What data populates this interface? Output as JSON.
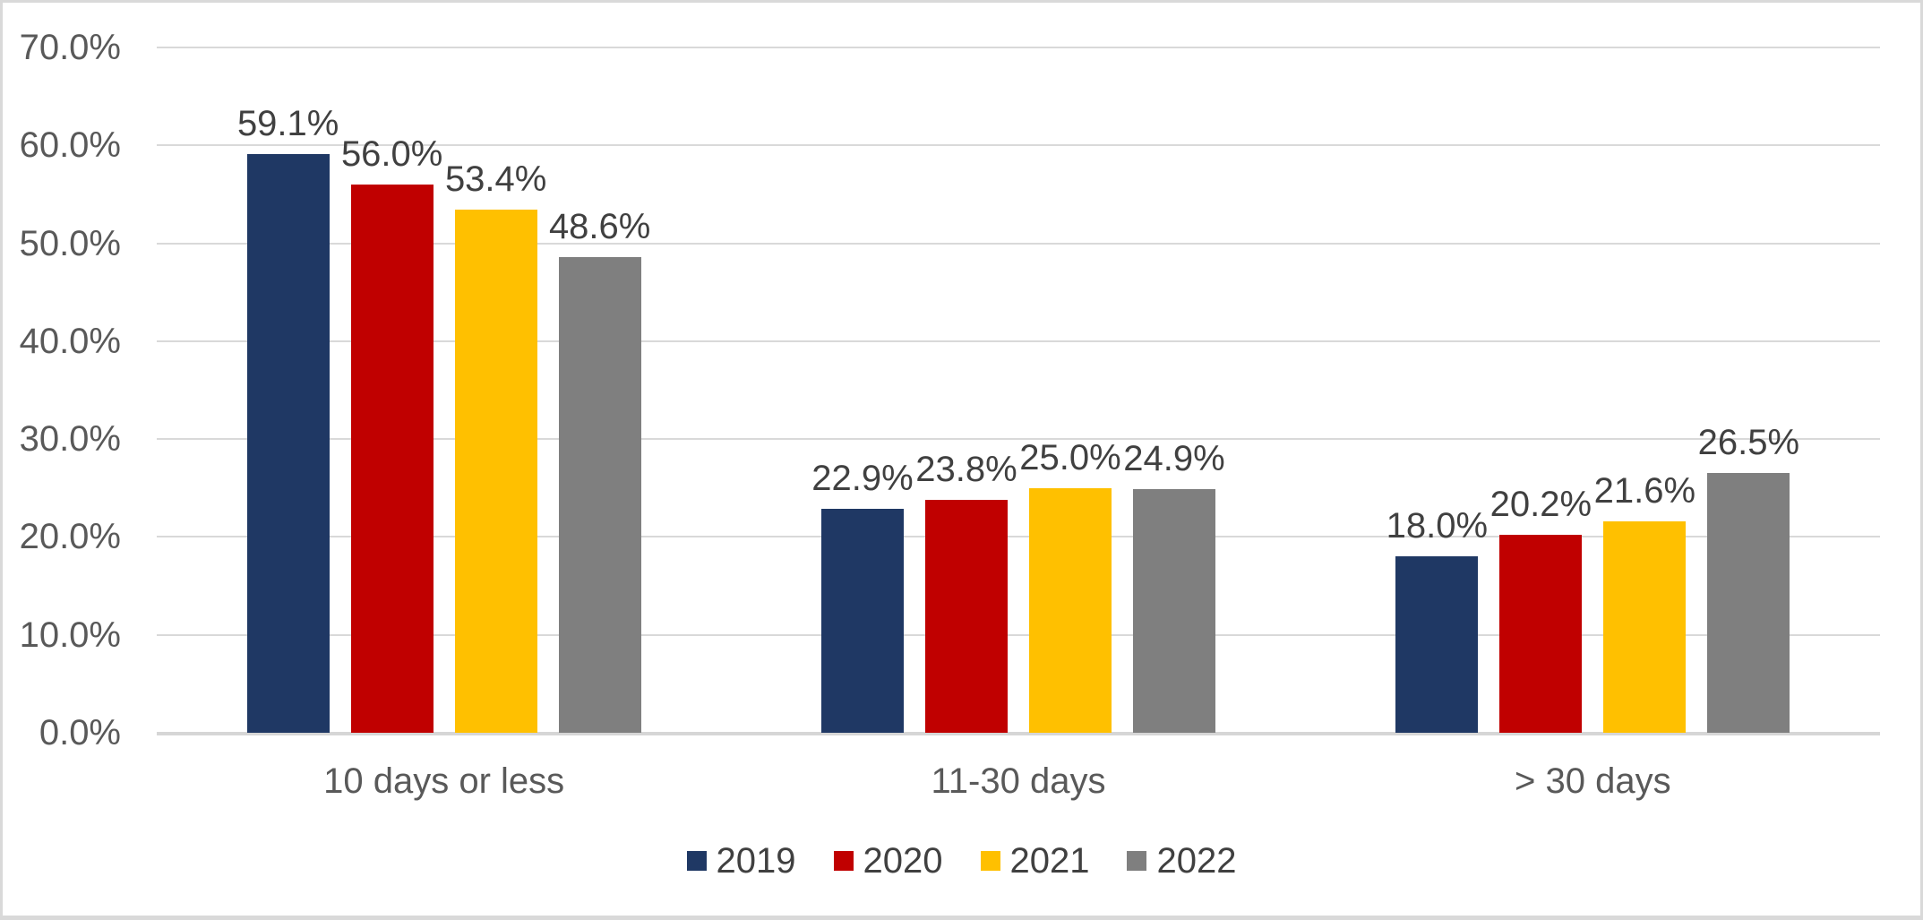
{
  "chart_data": {
    "type": "bar",
    "title": "",
    "categories": [
      "10 days or less",
      "11-30 days",
      "> 30 days"
    ],
    "series": [
      {
        "name": "2019",
        "color": "#1F3864",
        "values": [
          59.1,
          22.9,
          18.0
        ]
      },
      {
        "name": "2020",
        "color": "#C00000",
        "values": [
          56.0,
          23.8,
          20.2
        ]
      },
      {
        "name": "2021",
        "color": "#FFC000",
        "values": [
          53.4,
          25.0,
          21.6
        ]
      },
      {
        "name": "2022",
        "color": "#7F7F7F",
        "values": [
          48.6,
          24.9,
          26.5
        ]
      }
    ],
    "data_labels": {
      "visible": true,
      "position": "outside-end",
      "values": [
        [
          "59.1%",
          "22.9%",
          "18.0%"
        ],
        [
          "56.0%",
          "23.8%",
          "20.2%"
        ],
        [
          "53.4%",
          "25.0%",
          "21.6%"
        ],
        [
          "48.6%",
          "24.9%",
          "26.5%"
        ]
      ]
    },
    "y_axis": {
      "min": 0,
      "max": 70,
      "step": 10,
      "tick_labels": [
        "0.0%",
        "10.0%",
        "20.0%",
        "30.0%",
        "40.0%",
        "50.0%",
        "60.0%",
        "70.0%"
      ]
    },
    "x_axis": {
      "labels": [
        "10 days or less",
        "11-30 days",
        "> 30 days"
      ]
    },
    "legend": {
      "position": "bottom",
      "entries": [
        "2019",
        "2020",
        "2021",
        "2022"
      ]
    },
    "grid": true,
    "ylim": [
      0,
      70
    ]
  },
  "colors": {
    "background": "#FFFFFF",
    "border": "#D9D9D9",
    "gridline": "#D9D9D9",
    "axis_line": "#D6D6D6",
    "axis_text": "#595959",
    "data_label_text": "#404040",
    "legend_text": "#404040",
    "series": {
      "2019": "#1F3864",
      "2020": "#C00000",
      "2021": "#FFC000",
      "2022": "#7F7F7F"
    }
  }
}
